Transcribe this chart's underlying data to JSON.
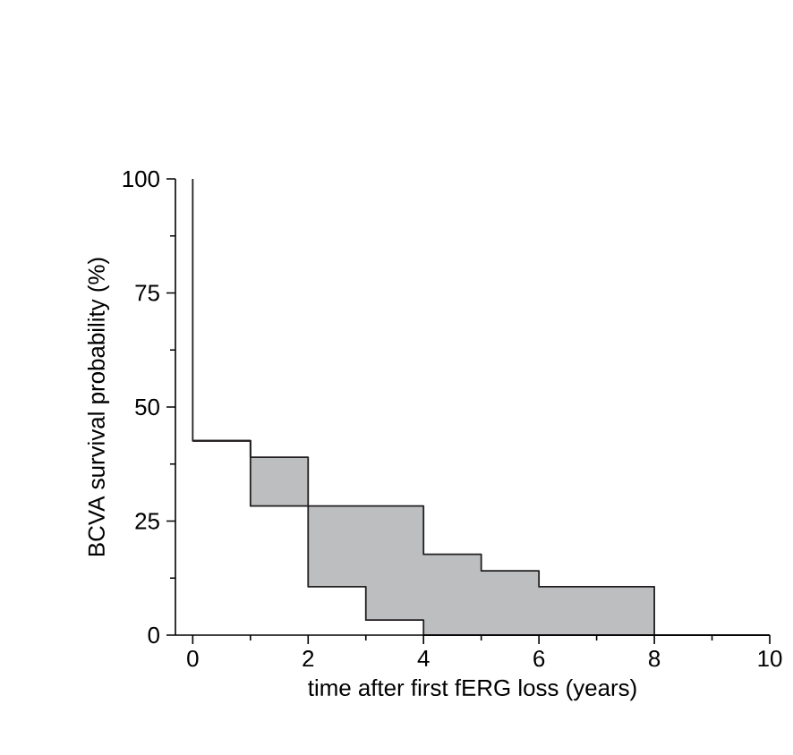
{
  "chart_data": {
    "type": "step",
    "xlabel": "time after first fERG loss (years)",
    "ylabel": "BCVA survival probability (%)",
    "series": [
      {
        "color": "#231f20",
        "x": [
          0,
          0,
          1,
          2,
          4,
          5,
          6,
          8,
          10
        ],
        "values": [
          100,
          42.6,
          39,
          28.3,
          17.7,
          14.1,
          10.6,
          0,
          0
        ]
      },
      {
        "color": "#231f20",
        "x": [
          0,
          1,
          2,
          3,
          4,
          10
        ],
        "values": [
          42.6,
          28.3,
          10.6,
          3.3,
          0,
          0
        ]
      }
    ],
    "xlim": [
      -0.3,
      10
    ],
    "ylim": [
      0,
      100
    ],
    "xticks": [
      0,
      2,
      4,
      6,
      8,
      10
    ],
    "yticks": [
      0,
      25,
      50,
      75,
      100
    ],
    "grid": false
  }
}
